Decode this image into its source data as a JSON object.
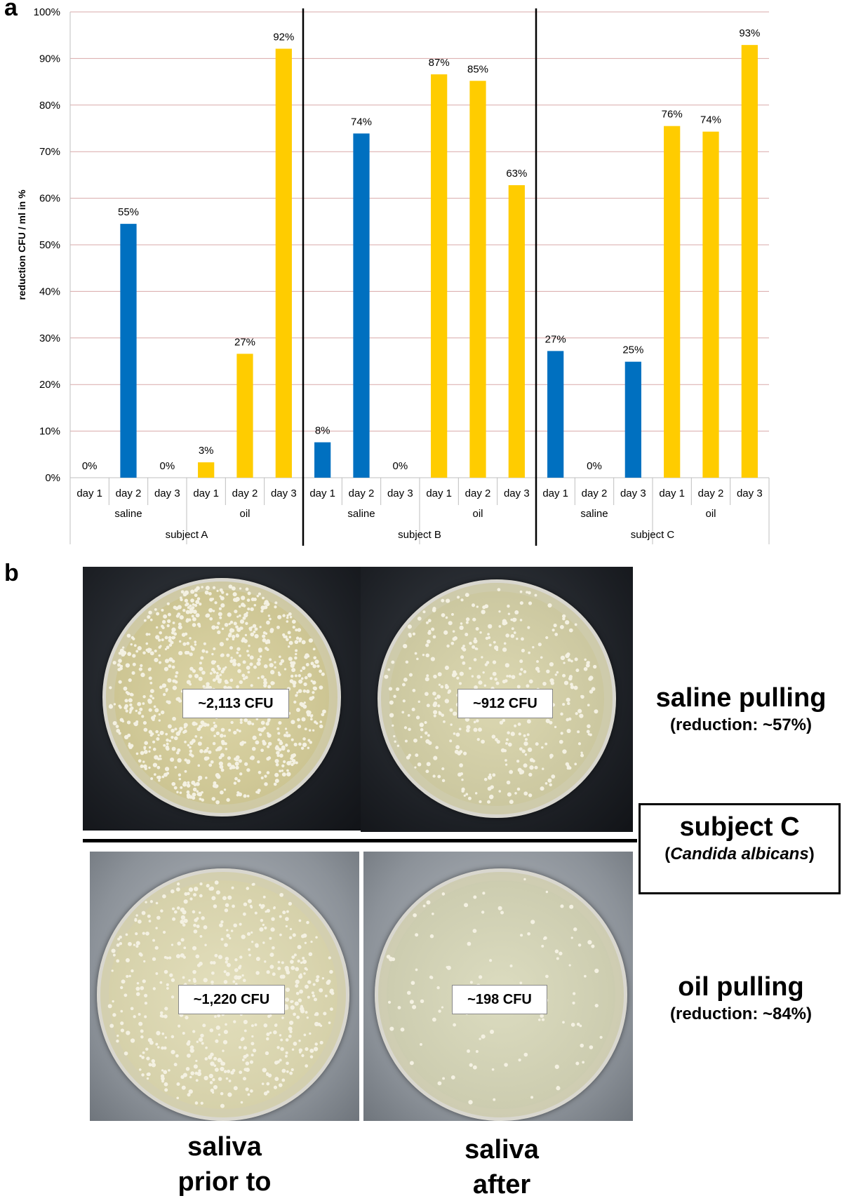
{
  "panel_a_label": "a",
  "panel_b_label": "b",
  "chart_data": {
    "type": "bar",
    "ylabel": "reduction CFU / ml in %",
    "ylim": [
      0,
      100
    ],
    "yticks": [
      "0%",
      "10%",
      "20%",
      "30%",
      "40%",
      "50%",
      "60%",
      "70%",
      "80%",
      "90%",
      "100%"
    ],
    "grid": true,
    "colors": {
      "saline": "#0070c0",
      "oil": "#ffcc00",
      "grid": "#d9a8a8"
    },
    "categories": [
      "day 1",
      "day 2",
      "day 3",
      "day 1",
      "day 2",
      "day 3",
      "day 1",
      "day 2",
      "day 3",
      "day 1",
      "day 2",
      "day 3",
      "day 1",
      "day 2",
      "day 3",
      "day 1",
      "day 2",
      "day 3"
    ],
    "treatment_groups": [
      "saline",
      "oil",
      "saline",
      "oil",
      "saline",
      "oil"
    ],
    "subjects": [
      "subject A",
      "subject B",
      "subject C"
    ],
    "values": [
      0,
      54.5,
      0,
      3.3,
      26.6,
      92.1,
      7.6,
      73.9,
      0,
      86.6,
      85.2,
      62.8,
      27.2,
      0,
      24.9,
      75.5,
      74.3,
      92.9
    ],
    "labels": [
      "0%",
      "55%",
      "0%",
      "3%",
      "27%",
      "92%",
      "8%",
      "74%",
      "0%",
      "87%",
      "85%",
      "63%",
      "27%",
      "0%",
      "25%",
      "76%",
      "74%",
      "93%"
    ],
    "series_of_bar": [
      "saline",
      "saline",
      "saline",
      "oil",
      "oil",
      "oil",
      "saline",
      "saline",
      "saline",
      "oil",
      "oil",
      "oil",
      "saline",
      "saline",
      "saline",
      "oil",
      "oil",
      "oil"
    ]
  },
  "panel_b": {
    "plates": [
      {
        "cfu": "~2,113 CFU",
        "style": "dark"
      },
      {
        "cfu": "~912 CFU",
        "style": "dark"
      },
      {
        "cfu": "~1,220 CFU",
        "style": "gray"
      },
      {
        "cfu": "~198 CFU",
        "style": "gray"
      }
    ],
    "saline_title": "saline pulling",
    "saline_reduction": "(reduction: ~57%)",
    "subject_title": "subject C",
    "subject_organism_open": "(",
    "subject_organism": "Candida albicans",
    "subject_organism_close": ")",
    "oil_title": "oil pulling",
    "oil_reduction": "(reduction: ~84%)",
    "caption_left_line1": "saliva",
    "caption_left_line2": "prior to",
    "caption_right_line1": "saliva",
    "caption_right_line2": "after"
  }
}
